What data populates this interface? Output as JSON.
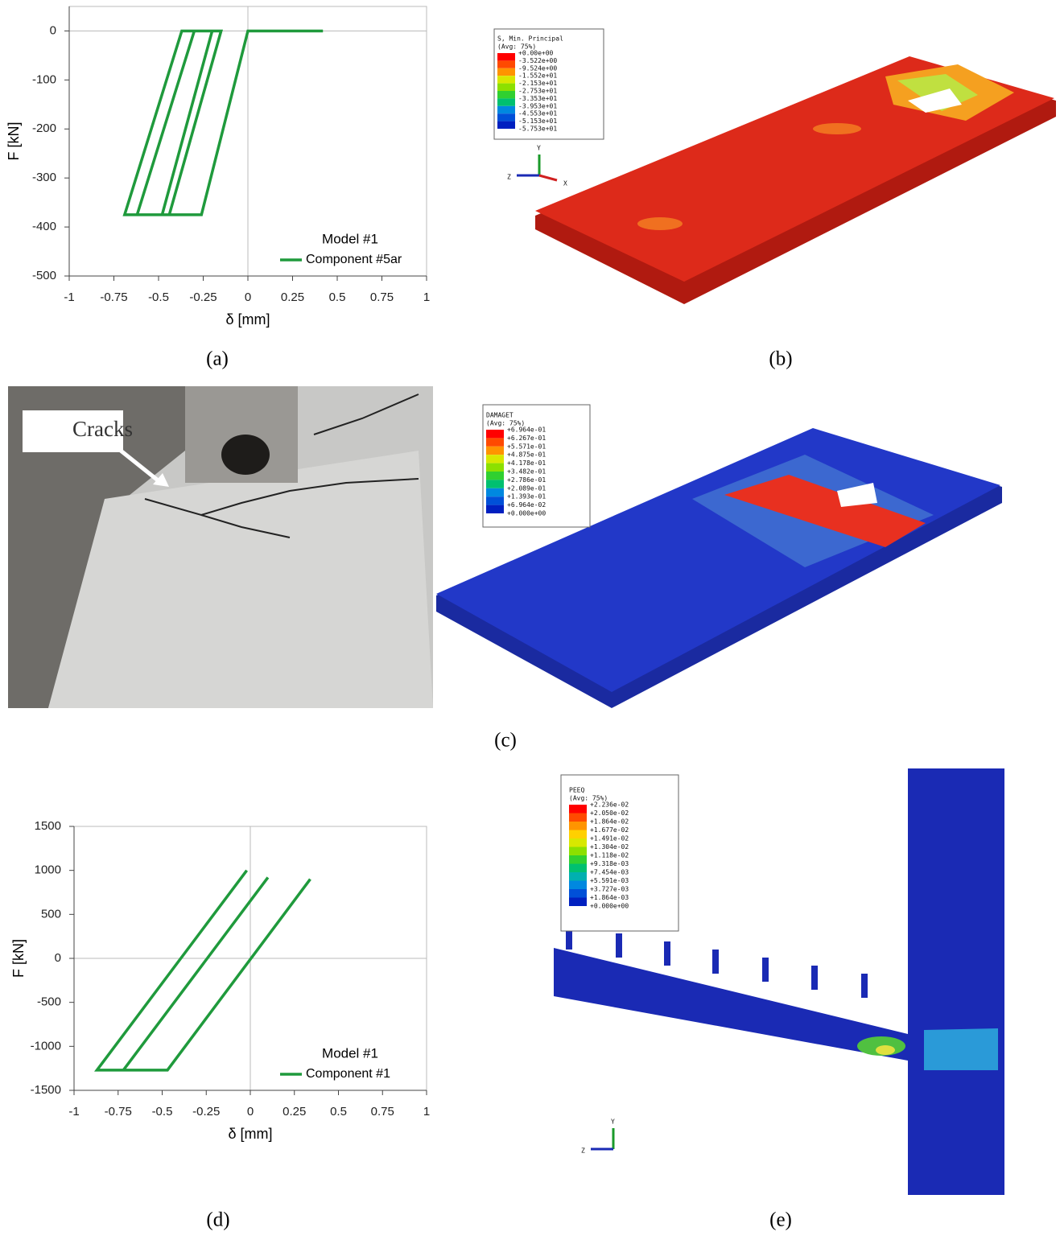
{
  "chart_data": [
    {
      "type": "line",
      "x_label": "δ  [mm]",
      "y_label": "F  [kN]",
      "xlim": [
        -1,
        1
      ],
      "xticks": [
        -1,
        -0.75,
        -0.5,
        -0.25,
        0,
        0.25,
        0.5,
        0.75,
        1
      ],
      "ylim": [
        -500,
        50
      ],
      "yticks": [
        0,
        -100,
        -200,
        -300,
        -400,
        -500
      ],
      "zero_lines": true,
      "legend_title": "Model #1",
      "legend": "lower right",
      "x": [
        0.42,
        0,
        -0.26,
        -0.69,
        -0.37,
        -0.15,
        -0.44,
        -0.62,
        -0.3,
        -0.2,
        -0.48
      ],
      "series": [
        {
          "name": "Component #5ar",
          "color": "#1f9a3c",
          "values": [
            0,
            0,
            -375,
            -375,
            0,
            0,
            -375,
            -375,
            0,
            0,
            -375
          ]
        }
      ]
    },
    {
      "type": "line",
      "x_label": "δ  [mm]",
      "y_label": "F  [kN]",
      "xlim": [
        -1,
        1
      ],
      "xticks": [
        -1,
        -0.75,
        -0.5,
        -0.25,
        0,
        0.25,
        0.5,
        0.75,
        1
      ],
      "ylim": [
        -1500,
        1500
      ],
      "yticks": [
        1500,
        1000,
        500,
        0,
        -500,
        -1000,
        -1500
      ],
      "zero_lines": true,
      "legend_title": "Model #1",
      "legend": "lower right",
      "x": [
        0.34,
        -0.47,
        -0.87,
        -0.02,
        null,
        0.1,
        -0.72
      ],
      "series": [
        {
          "name": "Component #1",
          "color": "#1f9a3c",
          "values": [
            900,
            -1270,
            -1270,
            1000,
            null,
            920,
            -1270
          ]
        }
      ]
    }
  ],
  "panels": {
    "labels": [
      "(a)",
      "(b)",
      "(c)",
      "(d)",
      "(e)"
    ],
    "photo_annotation": "Cracks",
    "contour_b": {
      "title": "S, Min. Principal",
      "subtitle": "(Avg: 75%)",
      "levels": [
        "+0.00e+00",
        "-3.522e+00",
        "-9.524e+00",
        "-1.552e+01",
        "-2.153e+01",
        "-2.753e+01",
        "-3.353e+01",
        "-3.953e+01",
        "-4.553e+01",
        "-5.153e+01",
        "-5.753e+01"
      ],
      "triad": [
        "Y",
        "Z",
        "X"
      ]
    },
    "contour_c": {
      "title": "DAMAGET",
      "subtitle": "(Avg: 75%)",
      "levels": [
        "+6.964e-01",
        "+6.267e-01",
        "+5.571e-01",
        "+4.875e-01",
        "+4.178e-01",
        "+3.482e-01",
        "+2.786e-01",
        "+2.089e-01",
        "+1.393e-01",
        "+6.964e-02",
        "+0.000e+00"
      ]
    },
    "contour_e": {
      "title": "PEEQ",
      "subtitle": "(Avg: 75%)",
      "levels": [
        "+2.236e-02",
        "+2.050e-02",
        "+1.864e-02",
        "+1.677e-02",
        "+1.491e-02",
        "+1.304e-02",
        "+1.118e-02",
        "+9.318e-03",
        "+7.454e-03",
        "+5.591e-03",
        "+3.727e-03",
        "+1.864e-03",
        "+0.000e+00"
      ],
      "triad": [
        "Y",
        "Z"
      ]
    }
  }
}
